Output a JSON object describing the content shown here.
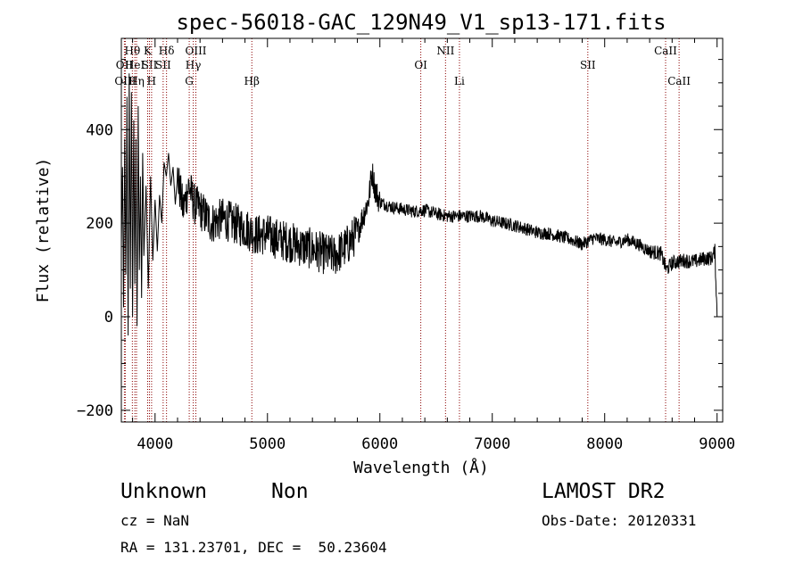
{
  "chart_data": {
    "type": "line",
    "title": "spec-56018-GAC_129N49_V1_sp13-171.fits",
    "xlabel": "Wavelength (Å)",
    "ylabel": "Flux (relative)",
    "xlim": [
      3700,
      9050
    ],
    "ylim": [
      -225,
      595
    ],
    "xticks": [
      4000,
      5000,
      6000,
      7000,
      8000,
      9000
    ],
    "yticks": [
      -200,
      0,
      200,
      400
    ],
    "grid": false,
    "line_color": "#000000",
    "marker_color": "#8b0000",
    "series": [
      {
        "values": [
          [
            3700,
            150
          ],
          [
            3710,
            320
          ],
          [
            3720,
            20
          ],
          [
            3730,
            380
          ],
          [
            3740,
            90
          ],
          [
            3750,
            470
          ],
          [
            3760,
            -40
          ],
          [
            3770,
            520
          ],
          [
            3780,
            60
          ],
          [
            3790,
            480
          ],
          [
            3800,
            0
          ],
          [
            3810,
            420
          ],
          [
            3820,
            70
          ],
          [
            3830,
            380
          ],
          [
            3840,
            -20
          ],
          [
            3850,
            450
          ],
          [
            3860,
            100
          ],
          [
            3870,
            300
          ],
          [
            3880,
            40
          ],
          [
            3890,
            350
          ],
          [
            3900,
            130
          ],
          [
            3920,
            280
          ],
          [
            3940,
            60
          ],
          [
            3960,
            300
          ],
          [
            3980,
            120
          ],
          [
            4000,
            250
          ],
          [
            4020,
            140
          ],
          [
            4040,
            260
          ],
          [
            4060,
            200
          ],
          [
            4080,
            330
          ],
          [
            4100,
            300
          ],
          [
            4120,
            350
          ],
          [
            4140,
            280
          ],
          [
            4160,
            320
          ],
          [
            4180,
            240
          ],
          [
            4200,
            300
          ],
          [
            4250,
            230
          ],
          [
            4300,
            280
          ],
          [
            4350,
            240
          ],
          [
            4400,
            230
          ],
          [
            4500,
            200
          ],
          [
            4600,
            210
          ],
          [
            4700,
            200
          ],
          [
            4800,
            190
          ],
          [
            4900,
            175
          ],
          [
            5000,
            175
          ],
          [
            5100,
            165
          ],
          [
            5200,
            160
          ],
          [
            5300,
            150
          ],
          [
            5400,
            145
          ],
          [
            5500,
            135
          ],
          [
            5600,
            130
          ],
          [
            5700,
            150
          ],
          [
            5800,
            180
          ],
          [
            5850,
            215
          ],
          [
            5900,
            250
          ],
          [
            5930,
            310
          ],
          [
            5960,
            270
          ],
          [
            6000,
            245
          ],
          [
            6100,
            235
          ],
          [
            6200,
            230
          ],
          [
            6300,
            225
          ],
          [
            6400,
            228
          ],
          [
            6500,
            220
          ],
          [
            6600,
            215
          ],
          [
            6700,
            215
          ],
          [
            6800,
            215
          ],
          [
            6900,
            215
          ],
          [
            7000,
            205
          ],
          [
            7100,
            200
          ],
          [
            7200,
            195
          ],
          [
            7300,
            188
          ],
          [
            7400,
            180
          ],
          [
            7500,
            178
          ],
          [
            7600,
            172
          ],
          [
            7700,
            165
          ],
          [
            7800,
            155
          ],
          [
            7900,
            168
          ],
          [
            8000,
            165
          ],
          [
            8100,
            158
          ],
          [
            8200,
            165
          ],
          [
            8300,
            155
          ],
          [
            8400,
            140
          ],
          [
            8500,
            135
          ],
          [
            8550,
            100
          ],
          [
            8600,
            115
          ],
          [
            8700,
            120
          ],
          [
            8800,
            118
          ],
          [
            8900,
            125
          ],
          [
            8950,
            125
          ],
          [
            8980,
            140
          ],
          [
            8995,
            40
          ],
          [
            9000,
            0
          ]
        ]
      }
    ],
    "markers": [
      {
        "label": "Hθ",
        "x": 3798,
        "row": 1
      },
      {
        "label": "OII",
        "x": 3727,
        "row": 2
      },
      {
        "label": "OIII",
        "x": 3735,
        "row": 3
      },
      {
        "label": "HeI",
        "x": 3820,
        "row": 2
      },
      {
        "label": "Hη",
        "x": 3835,
        "row": 3
      },
      {
        "label": "K",
        "x": 3934,
        "row": 1
      },
      {
        "label": "SII",
        "x": 3950,
        "row": 2
      },
      {
        "label": "H",
        "x": 3969,
        "row": 3
      },
      {
        "label": "Hδ",
        "x": 4102,
        "row": 1
      },
      {
        "label": "SII",
        "x": 4072,
        "row": 2
      },
      {
        "label": "OIII",
        "x": 4363,
        "row": 1
      },
      {
        "label": "Hγ",
        "x": 4340,
        "row": 2
      },
      {
        "label": "G",
        "x": 4304,
        "row": 3
      },
      {
        "label": "Hβ",
        "x": 4861,
        "row": 3
      },
      {
        "label": "OI",
        "x": 6364,
        "row": 2
      },
      {
        "label": "NII",
        "x": 6584,
        "row": 1
      },
      {
        "label": "Li",
        "x": 6708,
        "row": 3
      },
      {
        "label": "SII",
        "x": 7850,
        "row": 2
      },
      {
        "label": "CaII",
        "x": 8542,
        "row": 1
      },
      {
        "label": "CaII",
        "x": 8662,
        "row": 3
      }
    ]
  },
  "info": {
    "object_class": "Unknown",
    "subclass": "Non",
    "survey": "LAMOST DR2",
    "redshift": "cz = NaN",
    "obs_date": "Obs-Date: 20120331",
    "coords": "RA = 131.23701, DEC =  50.23604"
  }
}
